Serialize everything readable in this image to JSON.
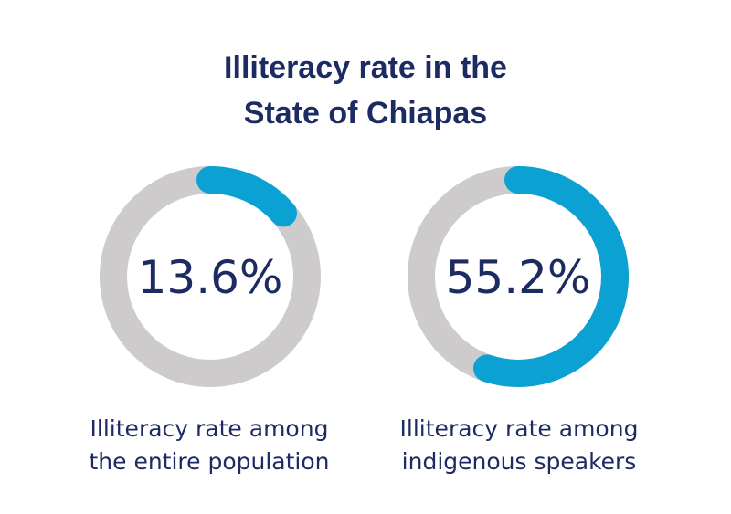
{
  "title_line_1": "Illiteracy rate in the",
  "title_line_2": "State of Chiapas",
  "colors": {
    "accent": "#0ba1d3",
    "track": "#cdcbcb",
    "text": "#1d2b63"
  },
  "chart_data": [
    {
      "type": "pie",
      "label": "13.6%",
      "value": 13.6,
      "max": 100,
      "caption_line_1": "Illiteracy rate among",
      "caption_line_2": "the entire population"
    },
    {
      "type": "pie",
      "label": "55.2%",
      "value": 55.2,
      "max": 100,
      "caption_line_1": "Illiteracy rate among",
      "caption_line_2": "indigenous speakers"
    }
  ]
}
